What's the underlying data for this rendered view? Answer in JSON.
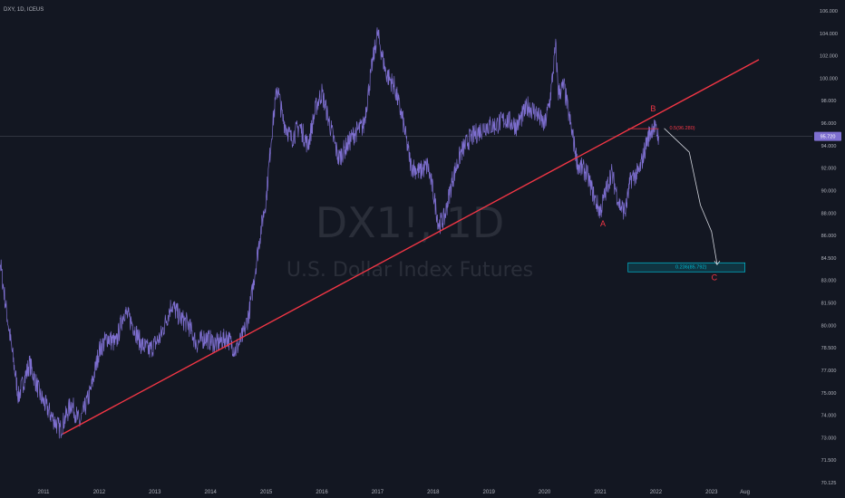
{
  "header": {
    "symbol_line": "DXY, 1D, ICEUS"
  },
  "watermark": {
    "ticker": "DX1!, 1D",
    "name": "U.S. Dollar Index Futures"
  },
  "chart_data": {
    "type": "line",
    "colors": {
      "background": "#131722",
      "price": "#7e6fd0",
      "trendline": "#f23645",
      "fib_box": "#00bcd4",
      "text": "#b2b5be"
    },
    "x_ticks": [
      "2011",
      "2012",
      "2013",
      "2014",
      "2015",
      "2016",
      "2017",
      "2018",
      "2019",
      "2020",
      "2021",
      "2022",
      "2023",
      "Aug"
    ],
    "y_ticks": [
      "106.000",
      "104.000",
      "102.000",
      "100.000",
      "98.000",
      "96.000",
      "94.000",
      "92.000",
      "90.000",
      "88.000",
      "86.000",
      "84.500",
      "83.000",
      "81.500",
      "80.000",
      "78.500",
      "77.000",
      "75.000",
      "74.000",
      "73.000",
      "71.500",
      "70.125"
    ],
    "ylim": [
      70.125,
      106.5
    ],
    "grid": false,
    "current_price": {
      "value": 95.7,
      "label": "95.720"
    },
    "series": [
      {
        "points": [
          [
            2010.0,
            80.5
          ],
          [
            2010.15,
            88.5
          ],
          [
            2010.35,
            82.0
          ],
          [
            2010.55,
            76.0
          ],
          [
            2010.75,
            78.5
          ],
          [
            2010.95,
            76.0
          ],
          [
            2011.15,
            74.5
          ],
          [
            2011.3,
            73.5
          ],
          [
            2011.5,
            75.5
          ],
          [
            2011.65,
            74.0
          ],
          [
            2011.85,
            76.5
          ],
          [
            2012.0,
            79.5
          ],
          [
            2012.15,
            80.5
          ],
          [
            2012.3,
            80.0
          ],
          [
            2012.45,
            82.5
          ],
          [
            2012.6,
            81.5
          ],
          [
            2012.75,
            80.0
          ],
          [
            2012.9,
            79.5
          ],
          [
            2013.1,
            80.5
          ],
          [
            2013.3,
            83.0
          ],
          [
            2013.45,
            82.0
          ],
          [
            2013.6,
            81.5
          ],
          [
            2013.75,
            80.0
          ],
          [
            2013.9,
            80.5
          ],
          [
            2014.1,
            80.0
          ],
          [
            2014.3,
            80.5
          ],
          [
            2014.45,
            79.5
          ],
          [
            2014.6,
            80.8
          ],
          [
            2014.7,
            82.5
          ],
          [
            2014.8,
            85.5
          ],
          [
            2014.9,
            88.5
          ],
          [
            2015.0,
            91.0
          ],
          [
            2015.1,
            96.0
          ],
          [
            2015.2,
            99.5
          ],
          [
            2015.3,
            97.0
          ],
          [
            2015.45,
            95.5
          ],
          [
            2015.6,
            96.5
          ],
          [
            2015.75,
            95.0
          ],
          [
            2015.9,
            98.0
          ],
          [
            2016.0,
            99.0
          ],
          [
            2016.15,
            96.5
          ],
          [
            2016.3,
            94.0
          ],
          [
            2016.45,
            95.0
          ],
          [
            2016.6,
            96.0
          ],
          [
            2016.75,
            96.5
          ],
          [
            2016.9,
            101.0
          ],
          [
            2017.0,
            103.5
          ],
          [
            2017.15,
            100.5
          ],
          [
            2017.3,
            99.5
          ],
          [
            2017.45,
            97.0
          ],
          [
            2017.6,
            93.5
          ],
          [
            2017.75,
            93.0
          ],
          [
            2017.9,
            93.5
          ],
          [
            2018.0,
            91.5
          ],
          [
            2018.1,
            89.0
          ],
          [
            2018.2,
            89.5
          ],
          [
            2018.35,
            92.5
          ],
          [
            2018.5,
            94.5
          ],
          [
            2018.65,
            95.5
          ],
          [
            2018.8,
            96.0
          ],
          [
            2018.95,
            96.5
          ],
          [
            2019.1,
            96.5
          ],
          [
            2019.3,
            97.0
          ],
          [
            2019.5,
            96.5
          ],
          [
            2019.7,
            98.0
          ],
          [
            2019.85,
            97.5
          ],
          [
            2020.0,
            96.5
          ],
          [
            2020.1,
            98.5
          ],
          [
            2020.2,
            102.5
          ],
          [
            2020.25,
            99.0
          ],
          [
            2020.35,
            99.5
          ],
          [
            2020.45,
            97.0
          ],
          [
            2020.6,
            93.5
          ],
          [
            2020.75,
            93.0
          ],
          [
            2020.9,
            91.0
          ],
          [
            2021.0,
            90.0
          ],
          [
            2021.1,
            91.5
          ],
          [
            2021.2,
            93.0
          ],
          [
            2021.35,
            90.5
          ],
          [
            2021.45,
            90.0
          ],
          [
            2021.55,
            92.5
          ],
          [
            2021.7,
            93.0
          ],
          [
            2021.85,
            95.5
          ],
          [
            2021.95,
            96.5
          ],
          [
            2022.05,
            95.7
          ]
        ]
      }
    ],
    "trendline": {
      "from": [
        2011.35,
        73.2
      ],
      "to": [
        2023.85,
        101.5
      ]
    },
    "annotations": {
      "wave_a": {
        "label": "A",
        "x": 2021.05,
        "y": 88.9
      },
      "wave_b": {
        "label": "B",
        "x": 2021.95,
        "y": 97.6
      },
      "wave_c": {
        "label": "C",
        "x": 2023.05,
        "y": 84.8
      },
      "fib_top": {
        "label": "0.5(96.280)",
        "x_from": 2021.5,
        "x_to": 2022.05,
        "y": 96.28
      },
      "fib_bottom": {
        "label": "0.236(85.792)",
        "x_from": 2021.5,
        "x_to": 2023.6,
        "y": 85.79
      },
      "projection": {
        "points": [
          [
            2022.15,
            96.3
          ],
          [
            2022.6,
            94.5
          ],
          [
            2022.8,
            90.5
          ],
          [
            2023.0,
            88.5
          ],
          [
            2023.1,
            86.0
          ]
        ]
      }
    }
  }
}
